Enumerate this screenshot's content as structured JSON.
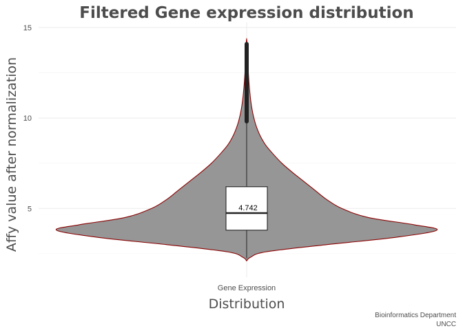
{
  "chart_data": {
    "type": "violin",
    "title": "Filtered Gene expression distribution",
    "xlabel": "Distribution",
    "ylabel": "Affy value after normalization",
    "categories": [
      "Gene Expression"
    ],
    "ylim": [
      1.2,
      15.3
    ],
    "yticks": [
      5,
      10,
      15
    ],
    "grid": true,
    "violin": {
      "min": 2.1,
      "max": 14.4,
      "profile": [
        [
          2.1,
          0.0
        ],
        [
          2.3,
          0.02
        ],
        [
          2.6,
          0.1
        ],
        [
          3.0,
          0.42
        ],
        [
          3.4,
          0.78
        ],
        [
          3.8,
          1.0
        ],
        [
          4.1,
          0.88
        ],
        [
          4.5,
          0.64
        ],
        [
          5.0,
          0.5
        ],
        [
          5.5,
          0.42
        ],
        [
          6.0,
          0.36
        ],
        [
          6.5,
          0.3
        ],
        [
          7.0,
          0.24
        ],
        [
          7.5,
          0.185
        ],
        [
          8.0,
          0.14
        ],
        [
          8.5,
          0.1
        ],
        [
          9.0,
          0.072
        ],
        [
          9.5,
          0.052
        ],
        [
          10.0,
          0.038
        ],
        [
          10.5,
          0.028
        ],
        [
          11.0,
          0.021
        ],
        [
          11.5,
          0.016
        ],
        [
          12.0,
          0.012
        ],
        [
          12.5,
          0.009
        ],
        [
          13.0,
          0.007
        ],
        [
          13.5,
          0.005
        ],
        [
          14.0,
          0.003
        ],
        [
          14.4,
          0.0
        ]
      ]
    },
    "boxplot": {
      "whisker_low": 2.25,
      "q1": 3.8,
      "median": 4.742,
      "q3": 6.2,
      "whisker_high": 9.8,
      "outliers_min": 9.7,
      "outliers_max": 14.2
    },
    "median_label": "4.742",
    "colors": {
      "violin_fill": "#969696",
      "violin_outline": "#8b0000",
      "box_fill": "#ffffff",
      "box_line": "#222222",
      "outlier": "#222222"
    }
  },
  "caption": {
    "line1": "Bioinformatics Department",
    "line2": "UNCC"
  }
}
